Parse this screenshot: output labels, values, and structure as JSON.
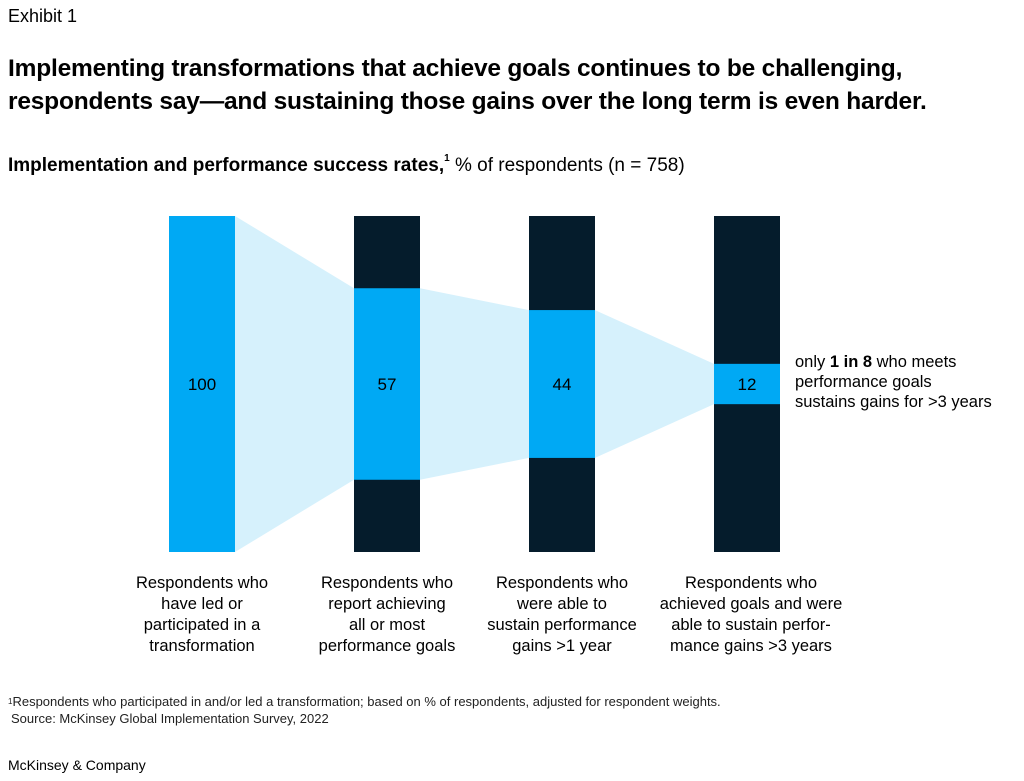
{
  "exhibit": "Exhibit 1",
  "title_lines": [
    "Implementing transformations that achieve goals continues to be challenging,",
    "respondents say—and sustaining those gains over the long term is even harder."
  ],
  "subtitle": {
    "bold": "Implementation and performance success rates,",
    "sup": "1",
    "rest": " % of respondents (n = 758)"
  },
  "chart_data": {
    "type": "bar",
    "categories": [
      "Respondents who have led or participated in a transformation",
      "Respondents who report achieving all or most performance goals",
      "Respondents who were able to sustain performance gains >1 year",
      "Respondents who achieved goals and were able to sustain performance gains >3 years"
    ],
    "values": [
      100,
      57,
      44,
      12
    ],
    "value_labels": [
      "100",
      "57",
      "44",
      "12"
    ],
    "ylim": [
      0,
      100
    ],
    "colors": {
      "highlight": "#00A9F4",
      "rest": "#051C2C",
      "funnel": "#D6F1FC"
    }
  },
  "bar_labels": [
    [
      "Respondents who",
      "have led or",
      "participated in a",
      "transformation"
    ],
    [
      "Respondents who",
      "report achieving",
      "all or most",
      "performance goals"
    ],
    [
      "Respondents who",
      "were able to",
      "sustain performance",
      "gains >1 year"
    ],
    [
      "Respondents who",
      "achieved goals and were",
      "able to sustain perfor-",
      "mance gains >3 years"
    ]
  ],
  "annotation": {
    "pre": "only ",
    "bold": "1 in 8",
    "post": " who meets",
    "line2": "performance goals",
    "line3": "sustains gains for >3 years"
  },
  "footnote": {
    "sup": "1",
    "text": "Respondents who participated in and/or led a transformation; based on % of respondents, adjusted for respondent weights.",
    "source": "Source: McKinsey Global Implementation Survey, 2022"
  },
  "brand": "McKinsey & Company"
}
